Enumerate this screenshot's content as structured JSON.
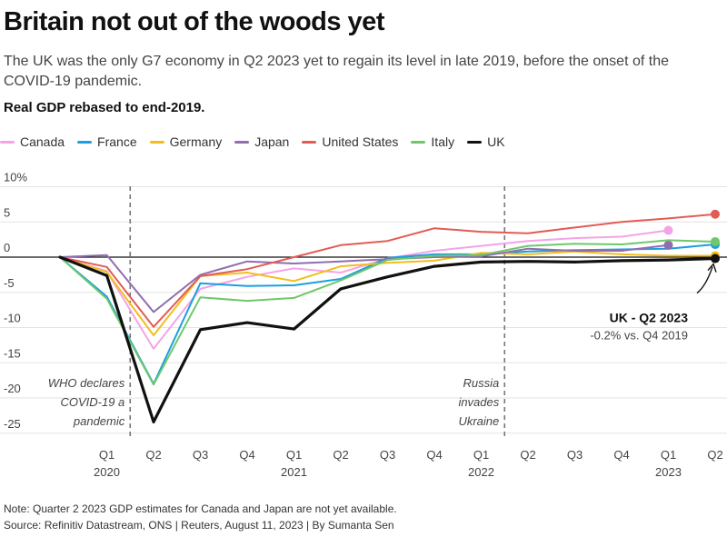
{
  "header": {
    "title": "Britain not out of the woods yet",
    "subtitle": "The UK was the only G7 economy in Q2 2023 yet to regain its level in late 2019, before the onset of the COVID-19 pandemic.",
    "chart_label": "Real GDP rebased to end-2019."
  },
  "footer": {
    "note": "Note: Quarter 2 2023 GDP estimates for Canada and Japan are not yet available.",
    "source": "Source: Refinitiv Datastream, ONS | Reuters, August 11, 2023 | By Sumanta Sen"
  },
  "colors": {
    "Canada": "#f5a3e8",
    "France": "#1c9fe0",
    "Germany": "#f2bd1d",
    "Japan": "#8f6db0",
    "United States": "#e25c55",
    "Italy": "#6fc76c",
    "UK": "#111111"
  },
  "chart_data": {
    "type": "line",
    "title": "Britain not out of the woods yet",
    "ylabel": "",
    "ylim": [
      -27,
      10
    ],
    "y_ticks": [
      10,
      5,
      0,
      -5,
      -10,
      -15,
      -20,
      -25
    ],
    "y_tick_labels": [
      "10%",
      "5",
      "0",
      "-5",
      "-10",
      "-15",
      "-20",
      "-25"
    ],
    "x": [
      "Q4 2019",
      "Q1 2020",
      "Q2 2020",
      "Q3 2020",
      "Q4 2020",
      "Q1 2021",
      "Q2 2021",
      "Q3 2021",
      "Q4 2021",
      "Q1 2022",
      "Q2 2022",
      "Q3 2022",
      "Q4 2022",
      "Q1 2023",
      "Q2 2023"
    ],
    "x_tick_labels": [
      "Q1",
      "Q2",
      "Q3",
      "Q4",
      "Q1",
      "Q2",
      "Q3",
      "Q4",
      "Q1",
      "Q2",
      "Q3",
      "Q4",
      "Q1",
      "Q2"
    ],
    "x_year_labels": [
      {
        "label": "2020",
        "quarter": "Q1 2020"
      },
      {
        "label": "2021",
        "quarter": "Q1 2021"
      },
      {
        "label": "2022",
        "quarter": "Q1 2022"
      },
      {
        "label": "2023",
        "quarter": "Q1 2023"
      }
    ],
    "series": [
      {
        "name": "Canada",
        "values": [
          0,
          -2.0,
          -13.0,
          -4.5,
          -2.8,
          -1.6,
          -2.2,
          -0.2,
          0.9,
          1.6,
          2.3,
          2.7,
          2.9,
          3.8,
          null
        ]
      },
      {
        "name": "France",
        "values": [
          0,
          -5.6,
          -18.0,
          -3.7,
          -4.1,
          -4.0,
          -3.1,
          -0.1,
          0.4,
          0.4,
          0.8,
          1.0,
          1.1,
          1.2,
          1.8
        ]
      },
      {
        "name": "Germany",
        "values": [
          0,
          -2.1,
          -11.1,
          -2.7,
          -2.2,
          -3.4,
          -1.3,
          -0.8,
          -0.5,
          0.6,
          0.4,
          0.8,
          0.4,
          0.2,
          0.2
        ]
      },
      {
        "name": "Japan",
        "values": [
          0,
          0.3,
          -7.8,
          -2.5,
          -0.6,
          -0.9,
          -0.6,
          -0.3,
          0.0,
          0.1,
          1.2,
          0.9,
          0.9,
          1.7,
          null
        ]
      },
      {
        "name": "United States",
        "values": [
          0,
          -1.4,
          -9.9,
          -2.7,
          -1.7,
          0.0,
          1.7,
          2.3,
          4.1,
          3.6,
          3.4,
          4.2,
          5.0,
          5.5,
          6.1
        ]
      },
      {
        "name": "Italy",
        "values": [
          0,
          -5.9,
          -18.1,
          -5.7,
          -6.2,
          -5.8,
          -3.3,
          -0.4,
          0.2,
          0.3,
          1.6,
          1.9,
          1.8,
          2.4,
          2.2
        ]
      },
      {
        "name": "UK",
        "values": [
          0,
          -2.6,
          -23.4,
          -10.3,
          -9.3,
          -10.2,
          -4.5,
          -2.8,
          -1.3,
          -0.7,
          -0.6,
          -0.7,
          -0.5,
          -0.4,
          -0.2
        ]
      }
    ],
    "annotations": [
      {
        "text_lines": [
          "WHO declares",
          "COVID-19 a",
          "pandemic"
        ],
        "after_quarter": "Q1 2020"
      },
      {
        "text_lines": [
          "Russia",
          "invades",
          "Ukraine"
        ],
        "after_quarter": "Q1 2022"
      }
    ],
    "callout": {
      "title": "UK - Q2 2023",
      "subtitle": "-0.2% vs. Q4 2019"
    }
  }
}
